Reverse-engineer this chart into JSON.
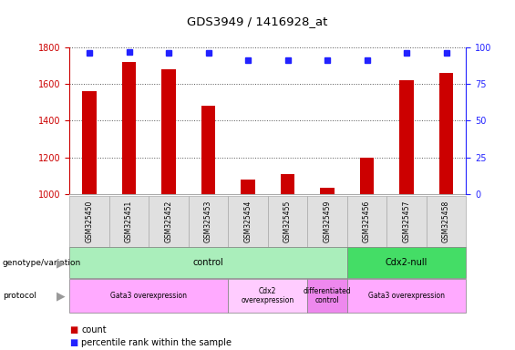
{
  "title": "GDS3949 / 1416928_at",
  "samples": [
    "GSM325450",
    "GSM325451",
    "GSM325452",
    "GSM325453",
    "GSM325454",
    "GSM325455",
    "GSM325459",
    "GSM325456",
    "GSM325457",
    "GSM325458"
  ],
  "counts": [
    1560,
    1720,
    1680,
    1480,
    1080,
    1110,
    1035,
    1200,
    1620,
    1660
  ],
  "percentile_ranks": [
    96,
    97,
    96,
    96,
    91,
    91,
    91,
    91,
    96,
    96
  ],
  "bar_color": "#cc0000",
  "dot_color": "#2222ff",
  "ylim_left": [
    1000,
    1800
  ],
  "ylim_right": [
    0,
    100
  ],
  "yticks_left": [
    1000,
    1200,
    1400,
    1600,
    1800
  ],
  "yticks_right": [
    0,
    25,
    50,
    75,
    100
  ],
  "genotype_groups": [
    {
      "label": "control",
      "start": 0,
      "end": 7,
      "color": "#aaeebb"
    },
    {
      "label": "Cdx2-null",
      "start": 7,
      "end": 10,
      "color": "#44dd66"
    }
  ],
  "protocol_groups": [
    {
      "label": "Gata3 overexpression",
      "start": 0,
      "end": 4,
      "color": "#ffaaff"
    },
    {
      "label": "Cdx2\noverexpression",
      "start": 4,
      "end": 6,
      "color": "#ffccff"
    },
    {
      "label": "differentiated\ncontrol",
      "start": 6,
      "end": 7,
      "color": "#ee88ee"
    },
    {
      "label": "Gata3 overexpression",
      "start": 7,
      "end": 10,
      "color": "#ffaaff"
    }
  ],
  "left_axis_color": "#cc0000",
  "right_axis_color": "#2222ff",
  "background_color": "#ffffff",
  "sample_bg_color": "#e0e0e0",
  "sample_border_color": "#aaaaaa"
}
